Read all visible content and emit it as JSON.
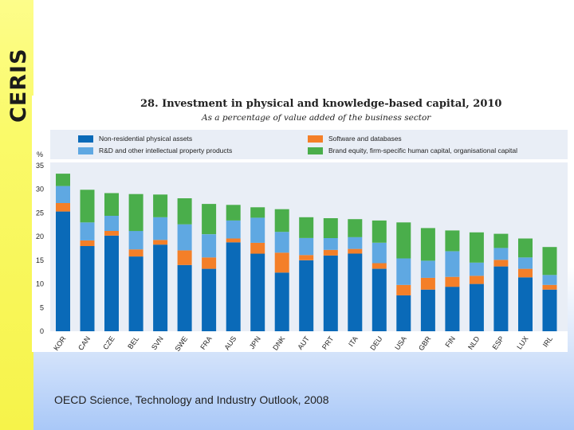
{
  "brand": {
    "logo_text": "CERIS",
    "bar_color": "#f7f44e",
    "logo_color": "#1b1b1b"
  },
  "chart_data": {
    "type": "bar",
    "stacked": true,
    "title": "28. Investment in physical and knowledge-based capital, 2010",
    "subtitle": "As a percentage of value added of the business sector",
    "ylabel": "%",
    "ylim": [
      0,
      35
    ],
    "yticks": [
      0,
      5,
      10,
      15,
      20,
      25,
      30,
      35
    ],
    "grid": false,
    "legend_position": "top",
    "categories": [
      "KOR",
      "CAN",
      "CZE",
      "BEL",
      "SVN",
      "SWE",
      "FRA",
      "AUS",
      "JPN",
      "DNK",
      "AUT",
      "PRT",
      "ITA",
      "DEU",
      "USA",
      "GBR",
      "FIN",
      "NLD",
      "ESP",
      "LUX",
      "IRL"
    ],
    "series": [
      {
        "name": "Non-residential physical assets",
        "color": "#0a6ab8",
        "values": [
          25.3,
          18.0,
          20.2,
          15.8,
          18.3,
          14.0,
          13.2,
          18.8,
          16.4,
          12.4,
          15.0,
          16.0,
          16.4,
          13.2,
          7.6,
          8.8,
          9.4,
          10.0,
          13.7,
          11.4,
          8.8
        ]
      },
      {
        "name": "Software and databases",
        "color": "#f47f28",
        "values": [
          1.8,
          1.2,
          1.0,
          1.5,
          1.0,
          3.1,
          2.4,
          0.8,
          2.3,
          4.2,
          1.1,
          1.2,
          1.0,
          1.2,
          2.2,
          2.5,
          2.1,
          1.7,
          1.4,
          1.8,
          1.0
        ]
      },
      {
        "name": "R&D and other intellectual property products",
        "color": "#5fa8e2",
        "values": [
          3.6,
          3.8,
          3.2,
          3.9,
          4.8,
          5.5,
          4.9,
          3.8,
          5.3,
          4.4,
          3.6,
          2.5,
          2.5,
          4.3,
          5.6,
          3.6,
          5.4,
          2.8,
          2.5,
          2.4,
          2.1
        ]
      },
      {
        "name": "Brand equity, firm-specific human capital, organisational capital",
        "color": "#4aae4b",
        "values": [
          2.6,
          6.9,
          4.8,
          7.8,
          4.8,
          5.5,
          6.4,
          3.3,
          2.2,
          4.8,
          4.4,
          4.2,
          3.8,
          4.7,
          7.6,
          6.9,
          4.4,
          6.4,
          3.0,
          4.0,
          5.9
        ]
      }
    ],
    "legend_order": [
      0,
      1,
      2,
      3
    ]
  },
  "source_note": "OECD Science, Technology and Industry Outlook, 2008"
}
